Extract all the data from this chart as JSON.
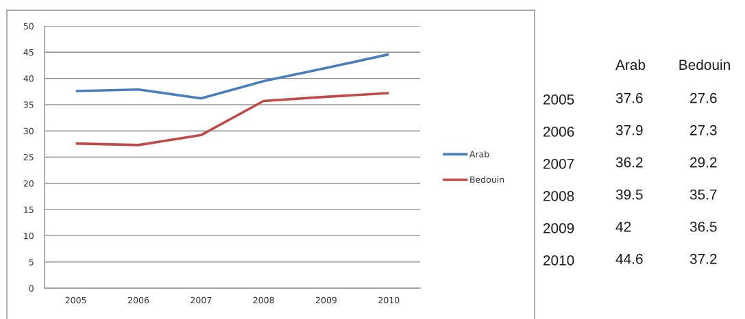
{
  "chart_data": [
    {
      "type": "line",
      "categories": [
        "2005",
        "2006",
        "2007",
        "2008",
        "2009",
        "2010"
      ],
      "series": [
        {
          "name": "Arab",
          "color": "#4a7ebb",
          "values": [
            37.6,
            37.9,
            36.2,
            39.5,
            42,
            44.6
          ]
        },
        {
          "name": "Bedouin",
          "color": "#be4b48",
          "values": [
            27.6,
            27.3,
            29.2,
            35.7,
            36.5,
            37.2
          ]
        }
      ],
      "ylim": [
        0,
        50
      ],
      "yticks": [
        0,
        5,
        10,
        15,
        20,
        25,
        30,
        35,
        40,
        45,
        50
      ],
      "grid": "y",
      "legend": "right",
      "line_style": "solid"
    },
    {
      "type": "heatmap",
      "categories": [
        "Arab",
        "Bedouin"
      ],
      "y_categories": [
        "2005",
        "2006",
        "2007",
        "2008",
        "2009",
        "2010"
      ],
      "cells": [
        [
          37.6,
          27.6
        ],
        [
          37.9,
          27.3
        ],
        [
          36.2,
          29.2
        ],
        [
          39.5,
          35.7
        ],
        [
          42,
          36.5
        ],
        [
          44.6,
          37.2
        ]
      ],
      "data_labels": true
    }
  ]
}
